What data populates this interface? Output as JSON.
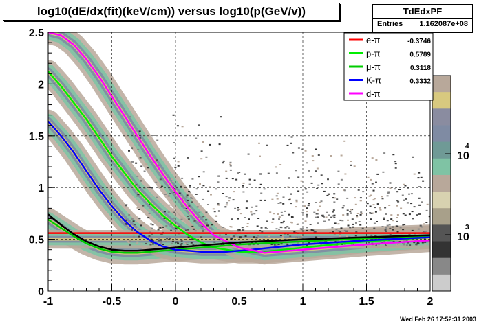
{
  "title": "log10(dE/dx(fit)(keV/cm)) versus log10(p(GeV/v))",
  "stats": {
    "name": "TdEdxPF",
    "entries_label": "Entries",
    "entries_value": "1.162087e+08"
  },
  "timestamp": "Wed Feb 26 17:52:31 2003",
  "colorbar": {
    "labels": [
      {
        "text": "10",
        "exp": "4"
      },
      {
        "text": "10",
        "exp": "3"
      }
    ]
  },
  "colors": {
    "band_outer": "#b8a89a",
    "band_mid": "#7fc3a4",
    "band_inner": "#7f8ba3",
    "band_core": "#d8c97f"
  },
  "chart_data": {
    "type": "line",
    "xlim": [
      -1,
      2
    ],
    "ylim": [
      0,
      2.5
    ],
    "x_ticks": [
      "-1",
      "-0.5",
      "0",
      "0.5",
      "1",
      "1.5",
      "2"
    ],
    "y_ticks": [
      "0",
      "0.5",
      "1",
      "1.5",
      "2",
      "2.5"
    ],
    "grid": true,
    "legend_position": "top-right",
    "series": [
      {
        "name": "e-π",
        "value": "-0.3746",
        "color": "#ff0000",
        "x": [
          -1.0,
          -0.8,
          -0.5,
          0.0,
          0.5,
          1.0,
          1.5,
          2.0
        ],
        "y": [
          0.56,
          0.56,
          0.56,
          0.56,
          0.56,
          0.56,
          0.56,
          0.56
        ]
      },
      {
        "name": "p-π",
        "value": "0.5789",
        "color": "#00ee00",
        "x": [
          -1.0,
          -0.9,
          -0.8,
          -0.7,
          -0.6,
          -0.5,
          -0.4,
          -0.3,
          -0.2,
          -0.1,
          0.0,
          0.1,
          0.2,
          0.3,
          0.5,
          0.7,
          1.0,
          1.5,
          2.0
        ],
        "y": [
          2.12,
          1.98,
          1.82,
          1.66,
          1.48,
          1.3,
          1.14,
          0.98,
          0.85,
          0.73,
          0.63,
          0.54,
          0.47,
          0.42,
          0.38,
          0.38,
          0.42,
          0.48,
          0.52
        ]
      },
      {
        "name": "μ-π",
        "value": "0.3118",
        "color": "#00cc00",
        "x": [
          -1.0,
          -0.9,
          -0.8,
          -0.7,
          -0.6,
          -0.5,
          -0.4,
          -0.3,
          -0.1,
          0.2,
          0.5,
          1.0,
          1.5,
          2.0
        ],
        "y": [
          0.69,
          0.61,
          0.53,
          0.46,
          0.41,
          0.38,
          0.37,
          0.37,
          0.39,
          0.42,
          0.45,
          0.48,
          0.51,
          0.53
        ]
      },
      {
        "name": "K-π",
        "value": "0.3332",
        "color": "#0000ff",
        "x": [
          -1.0,
          -0.9,
          -0.8,
          -0.7,
          -0.6,
          -0.5,
          -0.4,
          -0.3,
          -0.2,
          -0.1,
          0.0,
          0.2,
          0.4,
          0.6,
          1.0,
          1.5,
          2.0
        ],
        "y": [
          1.64,
          1.5,
          1.34,
          1.16,
          0.98,
          0.82,
          0.68,
          0.57,
          0.49,
          0.43,
          0.4,
          0.38,
          0.38,
          0.4,
          0.45,
          0.49,
          0.52
        ]
      },
      {
        "name": "d-π",
        "value": "",
        "color": "#ff00ff",
        "x": [
          -1.0,
          -0.9,
          -0.8,
          -0.7,
          -0.6,
          -0.5,
          -0.4,
          -0.3,
          -0.2,
          -0.1,
          0.0,
          0.1,
          0.2,
          0.3,
          0.5,
          0.7,
          1.0,
          1.5,
          2.0
        ],
        "y": [
          2.5,
          2.47,
          2.38,
          2.24,
          2.07,
          1.88,
          1.69,
          1.5,
          1.31,
          1.13,
          0.96,
          0.8,
          0.66,
          0.54,
          0.42,
          0.37,
          0.4,
          0.45,
          0.49
        ]
      },
      {
        "name": "",
        "value": "",
        "color": "#000000",
        "x": [
          -1.0,
          -0.9,
          -0.8,
          -0.7,
          -0.6,
          -0.5,
          -0.4,
          -0.3,
          -0.1,
          0.2,
          0.5,
          1.0,
          1.5,
          2.0
        ],
        "y": [
          0.74,
          0.64,
          0.55,
          0.48,
          0.43,
          0.4,
          0.39,
          0.39,
          0.41,
          0.44,
          0.47,
          0.5,
          0.52,
          0.54
        ]
      }
    ]
  }
}
